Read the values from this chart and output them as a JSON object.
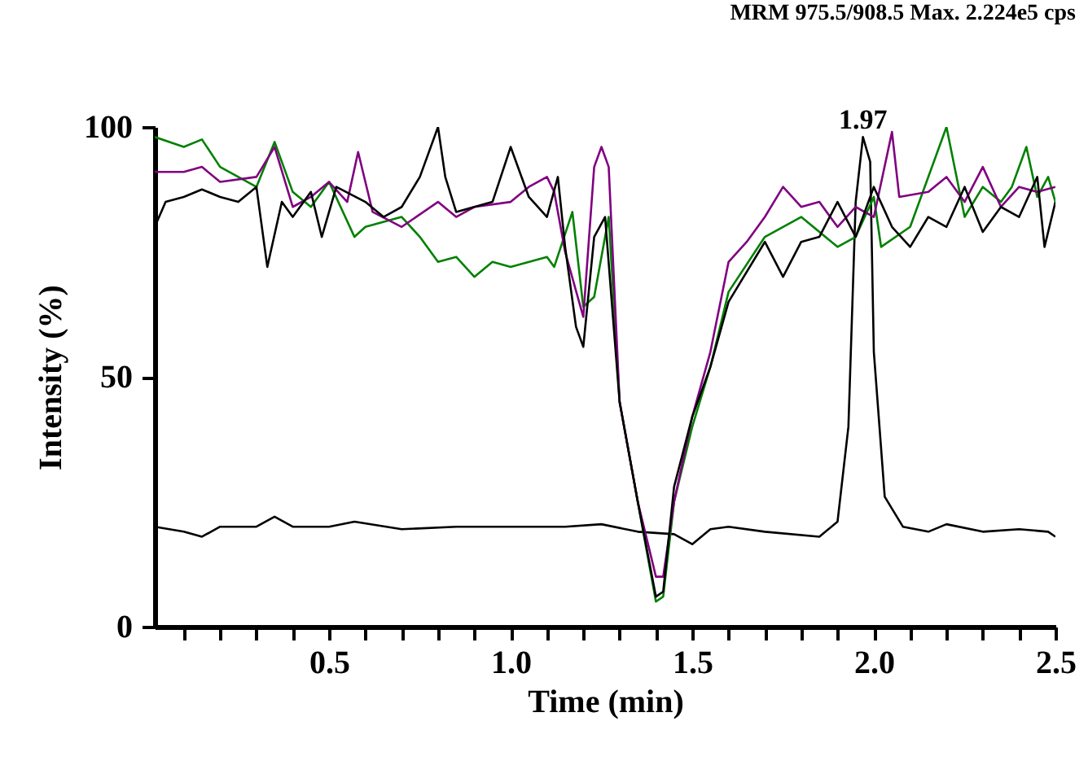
{
  "chart_data": {
    "type": "line",
    "title": "MRM 975.5/908.5   Max. 2.224e5 cps",
    "xlabel": "Time (min)",
    "ylabel": "Intensity (%)",
    "xlim": [
      0.02,
      2.5
    ],
    "ylim": [
      0,
      100
    ],
    "xticks": [
      {
        "value": 0.1,
        "label": null
      },
      {
        "value": 0.2,
        "label": null
      },
      {
        "value": 0.3,
        "label": null
      },
      {
        "value": 0.4,
        "label": null
      },
      {
        "value": 0.5,
        "label": "0.5"
      },
      {
        "value": 0.6,
        "label": null
      },
      {
        "value": 0.7,
        "label": null
      },
      {
        "value": 0.8,
        "label": null
      },
      {
        "value": 0.9,
        "label": null
      },
      {
        "value": 1.0,
        "label": "1.0"
      },
      {
        "value": 1.1,
        "label": null
      },
      {
        "value": 1.2,
        "label": null
      },
      {
        "value": 1.3,
        "label": null
      },
      {
        "value": 1.4,
        "label": null
      },
      {
        "value": 1.5,
        "label": "1.5"
      },
      {
        "value": 1.6,
        "label": null
      },
      {
        "value": 1.7,
        "label": null
      },
      {
        "value": 1.8,
        "label": null
      },
      {
        "value": 1.9,
        "label": null
      },
      {
        "value": 2.0,
        "label": "2.0"
      },
      {
        "value": 2.1,
        "label": null
      },
      {
        "value": 2.2,
        "label": null
      },
      {
        "value": 2.3,
        "label": null
      },
      {
        "value": 2.4,
        "label": null
      },
      {
        "value": 2.5,
        "label": "2.5"
      }
    ],
    "yticks": [
      0,
      50,
      100
    ],
    "annotations": [
      {
        "text": "1.97",
        "x": 1.97,
        "y": 98
      }
    ],
    "series": [
      {
        "color": "#000000",
        "x": [
          0.02,
          0.1,
          0.15,
          0.2,
          0.3,
          0.35,
          0.4,
          0.5,
          0.57,
          0.7,
          0.85,
          1.0,
          1.15,
          1.25,
          1.35,
          1.45,
          1.5,
          1.55,
          1.6,
          1.7,
          1.85,
          1.9,
          1.93,
          1.95,
          1.97,
          1.99,
          2.0,
          2.03,
          2.08,
          2.15,
          2.2,
          2.3,
          2.4,
          2.48,
          2.5
        ],
        "values": [
          20,
          19,
          18,
          20,
          20,
          22,
          20,
          20,
          21,
          19.5,
          20,
          20,
          20,
          20.5,
          19,
          18.5,
          16.5,
          19.5,
          20,
          19,
          18,
          21,
          40,
          85,
          98,
          93,
          55,
          26,
          20,
          19,
          20.5,
          19,
          19.5,
          19,
          18
        ]
      },
      {
        "color": "#008000",
        "x": [
          0.02,
          0.1,
          0.15,
          0.2,
          0.25,
          0.3,
          0.35,
          0.4,
          0.45,
          0.5,
          0.57,
          0.6,
          0.7,
          0.75,
          0.8,
          0.85,
          0.9,
          0.95,
          1.0,
          1.1,
          1.12,
          1.17,
          1.2,
          1.23,
          1.27,
          1.3,
          1.35,
          1.4,
          1.42,
          1.45,
          1.5,
          1.55,
          1.6,
          1.7,
          1.8,
          1.9,
          1.95,
          2.0,
          2.02,
          2.1,
          2.2,
          2.25,
          2.3,
          2.35,
          2.38,
          2.42,
          2.45,
          2.48,
          2.5
        ],
        "values": [
          98,
          96,
          97.5,
          92,
          90,
          88,
          97,
          87,
          84,
          89,
          78,
          80,
          82,
          78,
          73,
          74,
          70,
          73,
          72,
          74,
          72,
          83,
          64,
          66,
          82,
          45,
          25,
          5,
          6,
          25,
          40,
          52,
          67,
          78,
          82,
          76,
          78,
          86,
          76,
          80,
          100,
          82,
          88,
          85,
          88,
          96,
          86,
          90,
          85
        ]
      },
      {
        "color": "#800080",
        "x": [
          0.02,
          0.1,
          0.15,
          0.2,
          0.3,
          0.35,
          0.4,
          0.45,
          0.5,
          0.55,
          0.58,
          0.62,
          0.7,
          0.8,
          0.85,
          0.9,
          1.0,
          1.05,
          1.1,
          1.12,
          1.15,
          1.2,
          1.23,
          1.25,
          1.27,
          1.3,
          1.35,
          1.4,
          1.42,
          1.45,
          1.5,
          1.55,
          1.6,
          1.65,
          1.7,
          1.75,
          1.8,
          1.85,
          1.9,
          1.95,
          2.0,
          2.05,
          2.07,
          2.15,
          2.2,
          2.25,
          2.3,
          2.35,
          2.4,
          2.45,
          2.5
        ],
        "values": [
          91,
          91,
          92,
          89,
          90,
          96,
          84,
          86,
          89,
          85,
          95,
          83,
          80,
          85,
          82,
          84,
          85,
          88,
          90,
          87,
          75,
          62,
          92,
          96,
          92,
          45,
          25,
          10,
          10,
          25,
          42,
          55,
          73,
          77,
          82,
          88,
          84,
          85,
          80,
          84,
          82,
          99,
          86,
          87,
          90,
          85,
          92,
          84,
          88,
          87,
          88
        ]
      },
      {
        "color": "#000000",
        "x": [
          0.02,
          0.05,
          0.1,
          0.15,
          0.2,
          0.25,
          0.3,
          0.33,
          0.37,
          0.4,
          0.45,
          0.48,
          0.52,
          0.6,
          0.65,
          0.7,
          0.75,
          0.8,
          0.82,
          0.85,
          0.9,
          0.95,
          1.0,
          1.05,
          1.1,
          1.13,
          1.15,
          1.18,
          1.2,
          1.23,
          1.26,
          1.3,
          1.35,
          1.4,
          1.42,
          1.45,
          1.5,
          1.55,
          1.6,
          1.7,
          1.75,
          1.8,
          1.85,
          1.9,
          1.95,
          2.0,
          2.05,
          2.1,
          2.15,
          2.2,
          2.25,
          2.3,
          2.35,
          2.4,
          2.45,
          2.47,
          2.5
        ],
        "values": [
          80,
          85,
          86,
          87.5,
          86,
          85,
          88,
          72,
          85,
          82,
          87,
          78,
          88,
          85,
          82,
          84,
          90,
          100,
          90,
          83,
          84,
          85,
          96,
          86,
          82,
          90,
          76,
          60,
          56,
          78,
          82,
          45,
          25,
          6,
          7,
          28,
          42,
          52,
          65,
          77,
          70,
          77,
          78,
          85,
          78,
          88,
          80,
          76,
          82,
          80,
          88,
          79,
          84,
          82,
          90,
          76,
          85
        ]
      }
    ]
  }
}
